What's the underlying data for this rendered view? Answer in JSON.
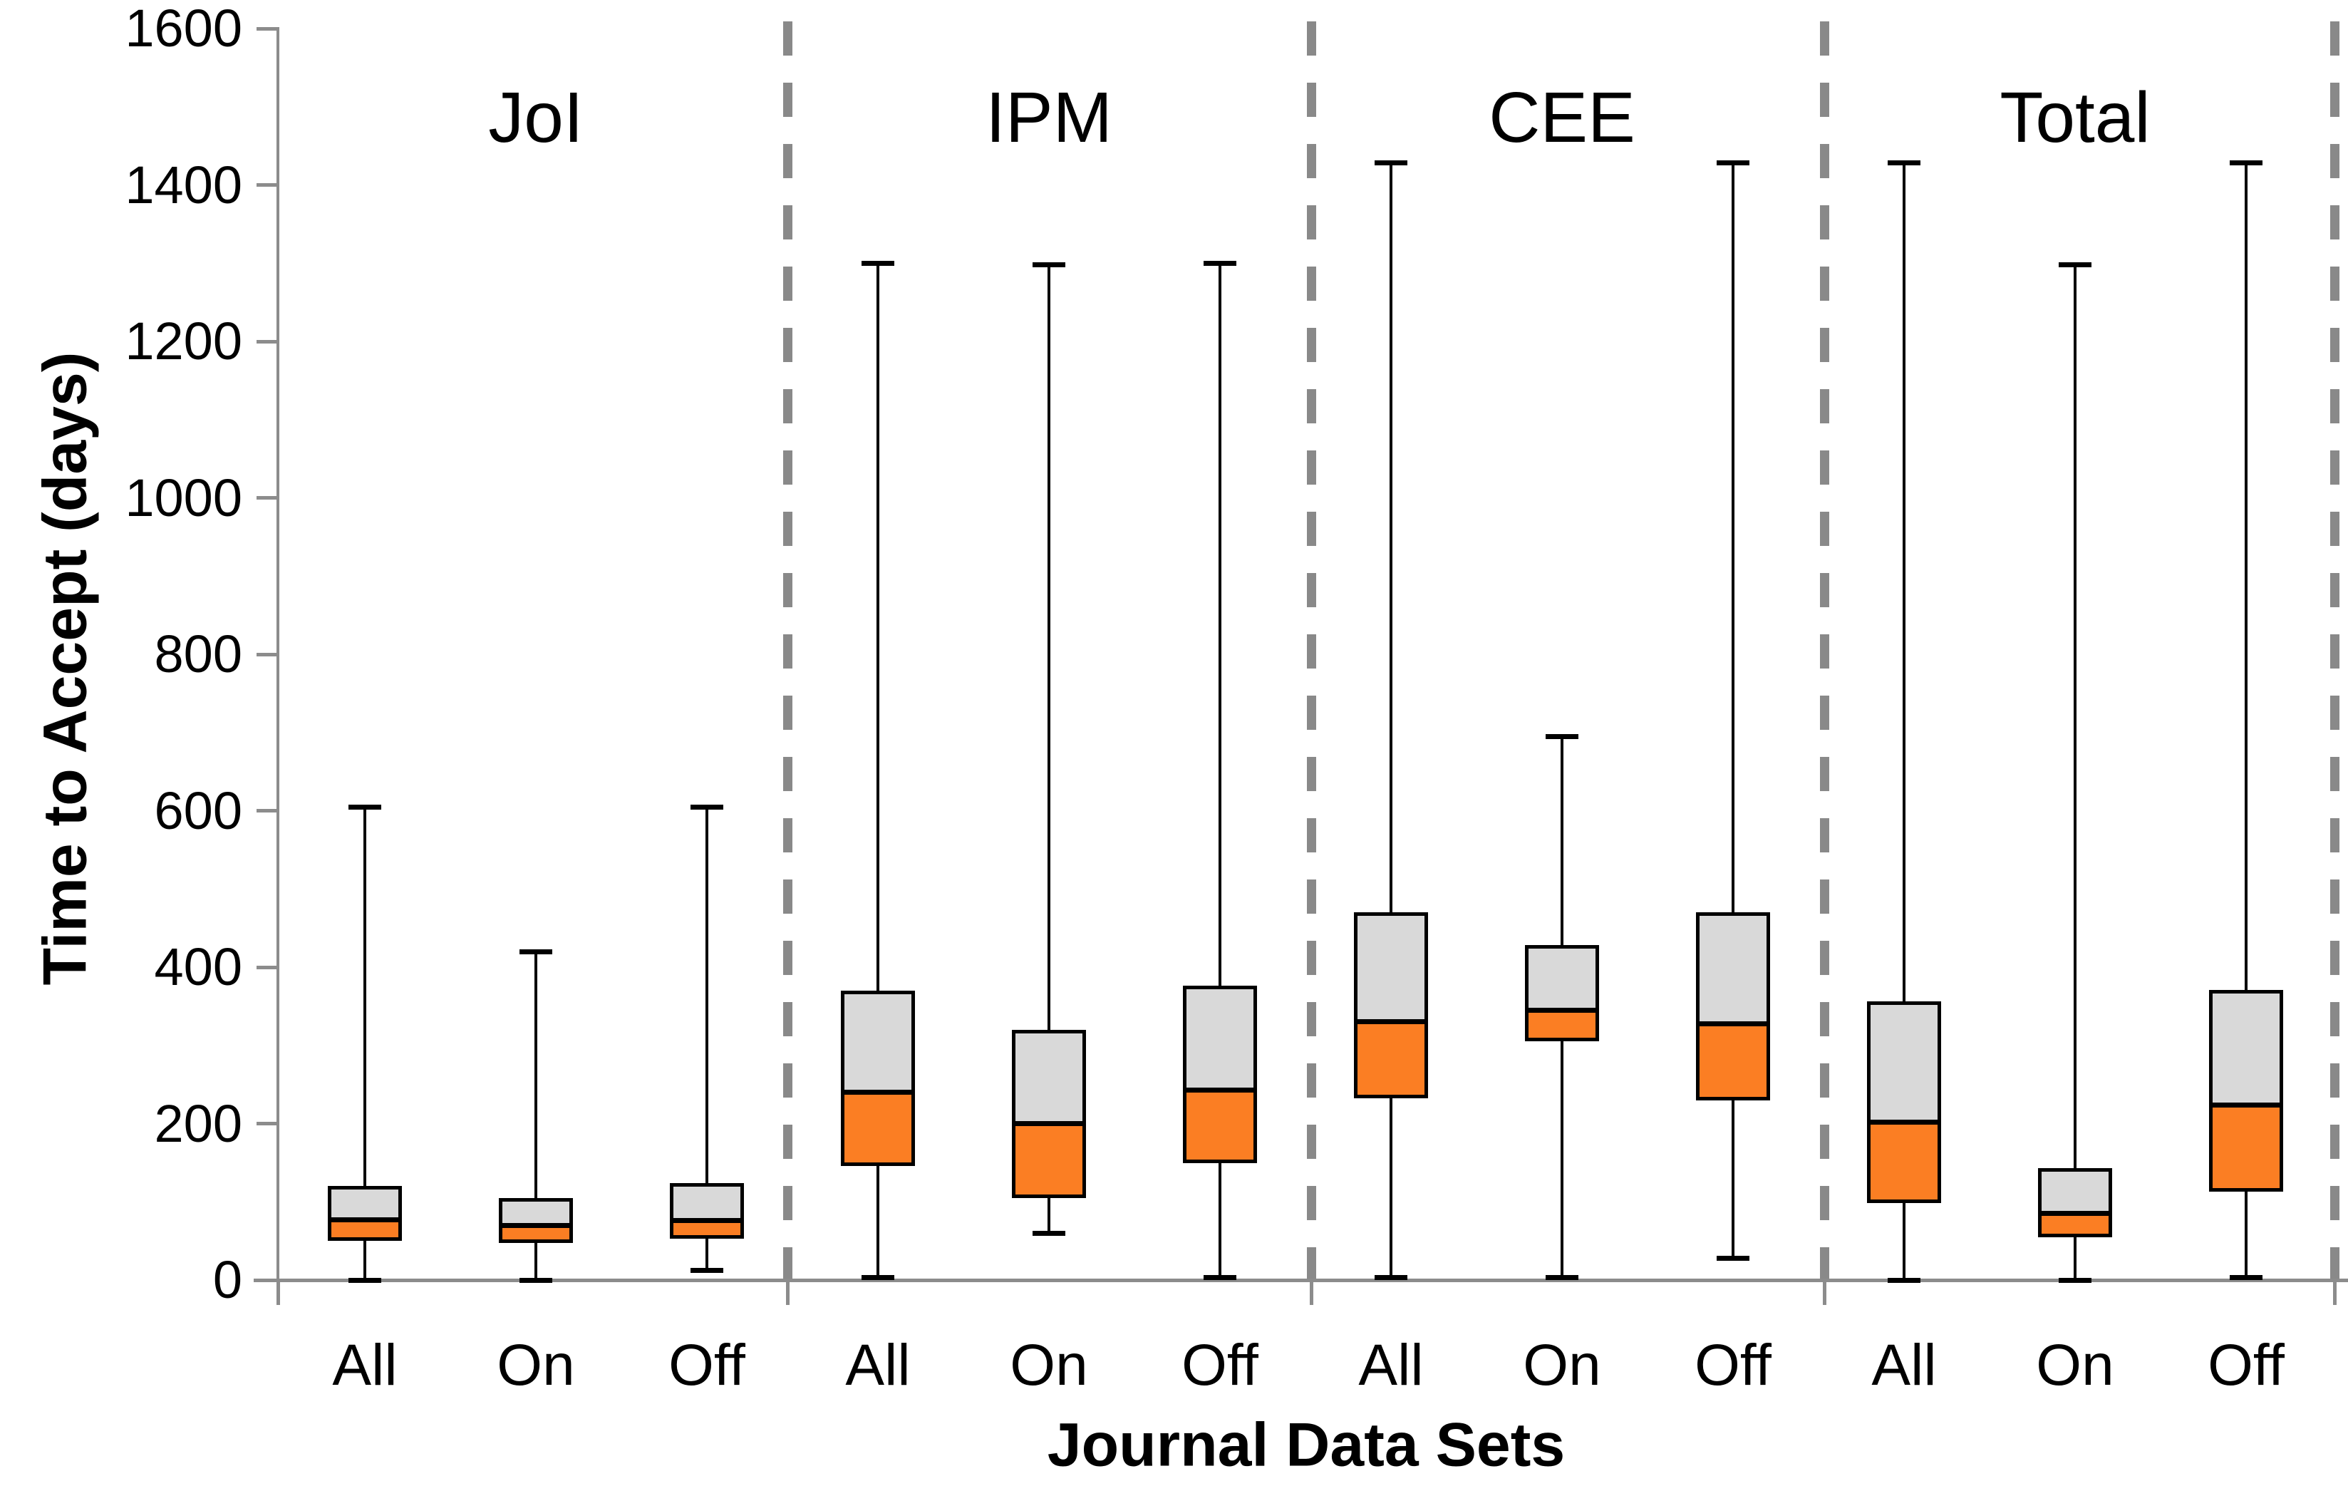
{
  "chart_data": {
    "type": "boxplot",
    "title": "",
    "xlabel": "Journal Data Sets",
    "ylabel": "Time to Accept (days)",
    "ylim": [
      0,
      1600
    ],
    "yticks": [
      0,
      200,
      400,
      600,
      800,
      1000,
      1200,
      1400,
      1600
    ],
    "grid": false,
    "legend_position": "none",
    "group_labels": [
      "JoI",
      "IPM",
      "CEE",
      "Total"
    ],
    "category_labels": [
      "All",
      "On",
      "Off"
    ],
    "groups": [
      {
        "label": "JoI",
        "boxes": [
          {
            "category": "All",
            "min": 0,
            "q1": 50,
            "median": 77,
            "q3": 120,
            "max": 605
          },
          {
            "category": "On",
            "min": 0,
            "q1": 47,
            "median": 70,
            "q3": 105,
            "max": 420
          },
          {
            "category": "Off",
            "min": 12,
            "q1": 53,
            "median": 76,
            "q3": 124,
            "max": 605
          }
        ]
      },
      {
        "label": "IPM",
        "boxes": [
          {
            "category": "All",
            "min": 3,
            "q1": 146,
            "median": 240,
            "q3": 370,
            "max": 1300
          },
          {
            "category": "On",
            "min": 60,
            "q1": 105,
            "median": 200,
            "q3": 320,
            "max": 1298
          },
          {
            "category": "Off",
            "min": 3,
            "q1": 149,
            "median": 243,
            "q3": 376,
            "max": 1300
          }
        ]
      },
      {
        "label": "CEE",
        "boxes": [
          {
            "category": "All",
            "min": 3,
            "q1": 232,
            "median": 330,
            "q3": 470,
            "max": 1428
          },
          {
            "category": "On",
            "min": 3,
            "q1": 305,
            "median": 345,
            "q3": 428,
            "max": 695
          },
          {
            "category": "Off",
            "min": 28,
            "q1": 230,
            "median": 328,
            "q3": 470,
            "max": 1428
          }
        ]
      },
      {
        "label": "Total",
        "boxes": [
          {
            "category": "All",
            "min": 0,
            "q1": 98,
            "median": 202,
            "q3": 356,
            "max": 1428
          },
          {
            "category": "On",
            "min": 0,
            "q1": 55,
            "median": 85,
            "q3": 143,
            "max": 1298
          },
          {
            "category": "Off",
            "min": 3,
            "q1": 113,
            "median": 224,
            "q3": 371,
            "max": 1428
          }
        ]
      }
    ],
    "colors": {
      "lower_box_fill": "#FB7E23",
      "upper_box_fill": "#D9D9D9",
      "box_border": "#000000",
      "whisker": "#000000",
      "axis_line": "#8C8C8C",
      "group_divider": "#898989",
      "text": "#000000",
      "background": "#FFFFFF"
    }
  }
}
